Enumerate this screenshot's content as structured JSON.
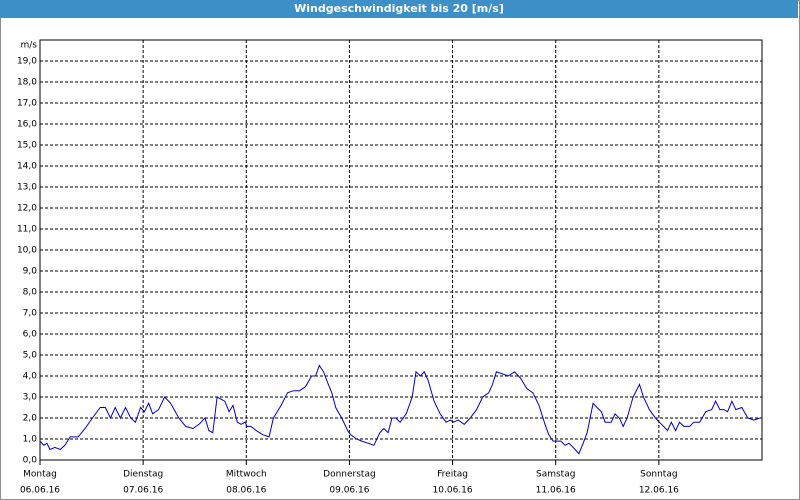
{
  "chart_data": {
    "type": "line",
    "title": "Windgeschwindigkeit bis 20 [m/s]",
    "y_unit": "m/s",
    "color": "#0000c8",
    "grid": true,
    "xlim": [
      0,
      168
    ],
    "xticks": [
      {
        "value": 0,
        "label": "Montag",
        "date": "06.06.16"
      },
      {
        "value": 24,
        "label": "Dienstag",
        "date": "07.06.16"
      },
      {
        "value": 48,
        "label": "Mittwoch",
        "date": "08.06.16"
      },
      {
        "value": 72,
        "label": "Donnerstag",
        "date": "09.06.16"
      },
      {
        "value": 96,
        "label": "Freitag",
        "date": "10.06.16"
      },
      {
        "value": 120,
        "label": "Samstag",
        "date": "11.06.16"
      },
      {
        "value": 144,
        "label": "Sonntag",
        "date": "12.06.16"
      }
    ],
    "ylim": [
      0,
      20
    ],
    "yticks": [
      {
        "value": 0,
        "label": "0,0"
      },
      {
        "value": 1,
        "label": "1,0"
      },
      {
        "value": 2,
        "label": "2,0"
      },
      {
        "value": 3,
        "label": "3,0"
      },
      {
        "value": 4,
        "label": "4,0"
      },
      {
        "value": 5,
        "label": "5,0"
      },
      {
        "value": 6,
        "label": "6,0"
      },
      {
        "value": 7,
        "label": "7,0"
      },
      {
        "value": 8,
        "label": "8,0"
      },
      {
        "value": 9,
        "label": "9,0"
      },
      {
        "value": 10,
        "label": "10,0"
      },
      {
        "value": 11,
        "label": "11,0"
      },
      {
        "value": 12,
        "label": "12,0"
      },
      {
        "value": 13,
        "label": "13,0"
      },
      {
        "value": 14,
        "label": "14,0"
      },
      {
        "value": 15,
        "label": "15,0"
      },
      {
        "value": 16,
        "label": "16,0"
      },
      {
        "value": 17,
        "label": "17,0"
      },
      {
        "value": 18,
        "label": "18,0"
      },
      {
        "value": 19,
        "label": "19,0"
      }
    ],
    "x": [
      0,
      0.9,
      1.6,
      2.3,
      3.5,
      4.7,
      5.8,
      7.0,
      8.9,
      10.5,
      12.2,
      14.0,
      15.2,
      16.4,
      17.5,
      18.7,
      19.9,
      21.1,
      22.2,
      23.4,
      24.3,
      25.3,
      26.2,
      27.6,
      29.0,
      30.4,
      32.3,
      33.9,
      35.6,
      37.0,
      38.4,
      39.3,
      40.2,
      41.2,
      42.1,
      43.0,
      44.0,
      44.9,
      45.9,
      46.8,
      47.7,
      48.2,
      49.1,
      50.3,
      51.9,
      53.3,
      54.3,
      56.1,
      57.6,
      59.0,
      60.4,
      61.8,
      63.2,
      64.1,
      65.0,
      66.0,
      66.9,
      67.9,
      68.8,
      70.2,
      71.6,
      72.3,
      73.7,
      74.9,
      76.3,
      77.7,
      79.1,
      80.0,
      81.0,
      81.9,
      82.8,
      83.8,
      85.2,
      86.6,
      87.5,
      88.5,
      89.4,
      90.3,
      91.7,
      93.1,
      94.5,
      95.5,
      96.2,
      97.3,
      98.7,
      100.1,
      101.6,
      103.0,
      104.4,
      105.3,
      106.2,
      107.6,
      109.0,
      110.4,
      111.8,
      113.3,
      114.7,
      116.1,
      117.5,
      118.4,
      119.4,
      120.1,
      121.2,
      122.2,
      123.1,
      124.5,
      125.4,
      126.4,
      127.3,
      128.7,
      129.6,
      130.6,
      131.5,
      132.9,
      133.8,
      134.8,
      135.7,
      136.6,
      138.0,
      139.5,
      140.4,
      141.8,
      143.2,
      144.1,
      145.1,
      146.0,
      146.9,
      147.9,
      148.8,
      149.8,
      151.2,
      152.1,
      153.5,
      154.9,
      156.3,
      157.2,
      158.2,
      159.1,
      160.0,
      161.0,
      161.9,
      163.3,
      164.7,
      166.1,
      167.5
    ],
    "values": [
      0.9,
      0.7,
      0.8,
      0.5,
      0.6,
      0.5,
      0.7,
      1.1,
      1.1,
      1.5,
      2.0,
      2.5,
      2.5,
      2.0,
      2.5,
      2.0,
      2.5,
      2.0,
      1.8,
      2.5,
      2.3,
      2.7,
      2.2,
      2.4,
      3.0,
      2.7,
      2.0,
      1.6,
      1.5,
      1.7,
      2.0,
      1.4,
      1.3,
      3.0,
      2.9,
      2.8,
      2.3,
      2.6,
      1.8,
      1.7,
      1.8,
      1.6,
      1.6,
      1.4,
      1.2,
      1.1,
      2.0,
      2.6,
      3.2,
      3.3,
      3.3,
      3.5,
      4.0,
      4.0,
      4.5,
      4.2,
      3.7,
      3.2,
      2.5,
      2.0,
      1.4,
      1.2,
      1.0,
      0.9,
      0.8,
      0.7,
      1.3,
      1.5,
      1.3,
      2.0,
      2.0,
      1.8,
      2.2,
      3.0,
      4.2,
      4.0,
      4.2,
      3.8,
      2.8,
      2.2,
      1.8,
      1.9,
      1.8,
      1.9,
      1.7,
      2.0,
      2.4,
      3.0,
      3.2,
      3.6,
      4.2,
      4.1,
      4.0,
      4.2,
      3.9,
      3.4,
      3.2,
      2.6,
      1.7,
      1.2,
      0.9,
      0.9,
      0.9,
      0.7,
      0.8,
      0.5,
      0.3,
      0.8,
      1.3,
      2.7,
      2.5,
      2.3,
      1.8,
      1.8,
      2.2,
      2.0,
      1.6,
      2.0,
      3.0,
      3.6,
      3.0,
      2.4,
      2.0,
      1.8,
      1.6,
      1.4,
      1.8,
      1.4,
      1.8,
      1.6,
      1.6,
      1.8,
      1.8,
      2.3,
      2.4,
      2.8,
      2.4,
      2.4,
      2.3,
      2.8,
      2.4,
      2.5,
      2.0,
      1.9,
      2.0
    ]
  }
}
